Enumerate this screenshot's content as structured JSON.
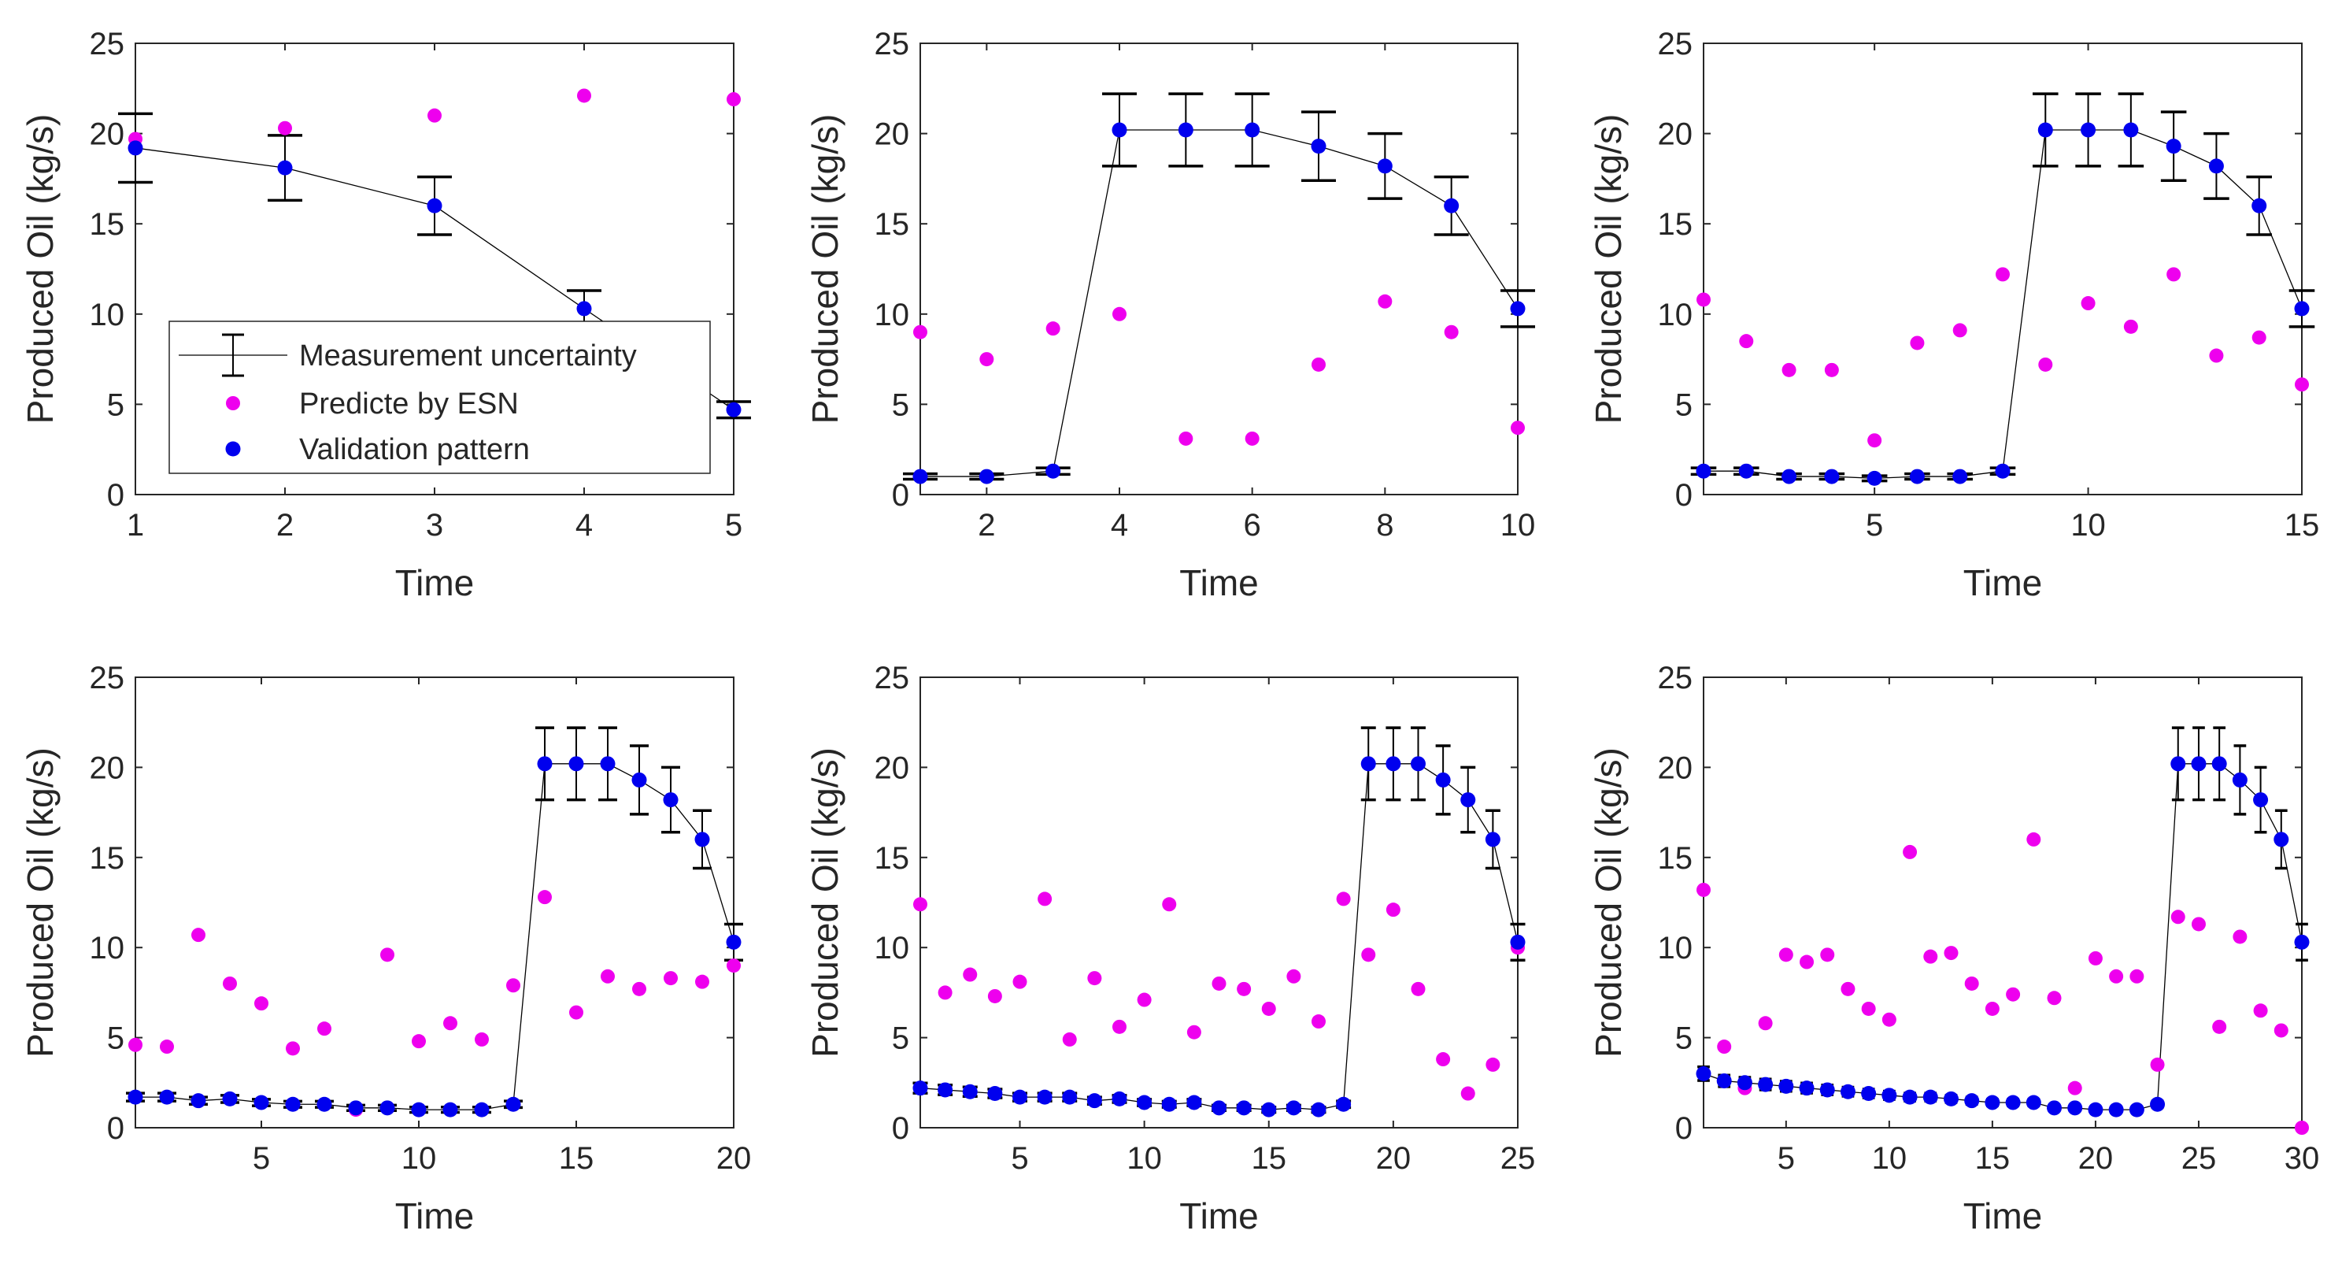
{
  "colors": {
    "validation": "#0000ee",
    "predicted": "#ee00ee",
    "line": "#000000",
    "axis": "#262626"
  },
  "legend": {
    "entries": [
      {
        "label": "Measurement uncertainty",
        "marker": "errorbar-line"
      },
      {
        "label": "Predicte by ESN",
        "marker": "magenta-dot"
      },
      {
        "label": "Validation pattern",
        "marker": "blue-dot"
      }
    ],
    "placement": "inside-bottom-left of first panel"
  },
  "chart_data": [
    {
      "type": "scatter",
      "xlabel": "Time",
      "ylabel": "Produced Oil (kg/s)",
      "xlim": [
        1,
        5
      ],
      "ylim": [
        0,
        25
      ],
      "xticks": [
        1,
        2,
        3,
        4,
        5
      ],
      "yticks": [
        0,
        5,
        10,
        15,
        20,
        25
      ],
      "series": [
        {
          "kind": "validation",
          "x": [
            1,
            2,
            3,
            4,
            5
          ],
          "y": [
            19.2,
            18.1,
            16.0,
            10.3,
            4.7
          ],
          "err": [
            1.9,
            1.8,
            1.6,
            1.0,
            0.45
          ]
        },
        {
          "kind": "predicted",
          "x": [
            1,
            2,
            3,
            4,
            5
          ],
          "y": [
            19.7,
            20.3,
            21.0,
            22.1,
            21.9
          ]
        }
      ]
    },
    {
      "type": "scatter",
      "xlabel": "Time",
      "ylabel": "Produced Oil (kg/s)",
      "xlim": [
        1,
        10
      ],
      "ylim": [
        0,
        25
      ],
      "xticks": [
        2,
        4,
        6,
        8,
        10
      ],
      "yticks": [
        0,
        5,
        10,
        15,
        20,
        25
      ],
      "series": [
        {
          "kind": "validation",
          "x": [
            1,
            2,
            3,
            4,
            5,
            6,
            7,
            8,
            9,
            10
          ],
          "y": [
            1.0,
            1.0,
            1.3,
            20.2,
            20.2,
            20.2,
            19.3,
            18.2,
            16.0,
            10.3
          ],
          "err": [
            0.15,
            0.15,
            0.18,
            2.0,
            2.0,
            2.0,
            1.9,
            1.8,
            1.6,
            1.0
          ]
        },
        {
          "kind": "predicted",
          "x": [
            1,
            2,
            3,
            4,
            5,
            6,
            7,
            8,
            9,
            10
          ],
          "y": [
            9.0,
            7.5,
            9.2,
            10.0,
            3.1,
            3.1,
            7.2,
            10.7,
            9.0,
            3.7
          ]
        }
      ]
    },
    {
      "type": "scatter",
      "xlabel": "Time",
      "ylabel": "Produced Oil (kg/s)",
      "xlim": [
        1,
        15
      ],
      "ylim": [
        0,
        25
      ],
      "xticks": [
        5,
        10,
        15
      ],
      "yticks": [
        0,
        5,
        10,
        15,
        20,
        25
      ],
      "series": [
        {
          "kind": "validation",
          "x": [
            1,
            2,
            3,
            4,
            5,
            6,
            7,
            8,
            9,
            10,
            11,
            12,
            13,
            14,
            15
          ],
          "y": [
            1.3,
            1.3,
            1.0,
            1.0,
            0.9,
            1.0,
            1.0,
            1.3,
            20.2,
            20.2,
            20.2,
            19.3,
            18.2,
            16.0,
            10.3
          ],
          "err": [
            0.18,
            0.18,
            0.15,
            0.15,
            0.14,
            0.15,
            0.15,
            0.18,
            2.0,
            2.0,
            2.0,
            1.9,
            1.8,
            1.6,
            1.0
          ]
        },
        {
          "kind": "predicted",
          "x": [
            1,
            2,
            3,
            4,
            5,
            6,
            7,
            8,
            9,
            10,
            11,
            12,
            13,
            14,
            15
          ],
          "y": [
            10.8,
            8.5,
            6.9,
            6.9,
            3.0,
            8.4,
            9.1,
            12.2,
            7.2,
            10.6,
            9.3,
            12.2,
            7.7,
            8.7,
            6.1
          ]
        }
      ]
    },
    {
      "type": "scatter",
      "xlabel": "Time",
      "ylabel": "Produced Oil (kg/s)",
      "xlim": [
        1,
        20
      ],
      "ylim": [
        0,
        25
      ],
      "xticks": [
        5,
        10,
        15,
        20
      ],
      "yticks": [
        0,
        5,
        10,
        15,
        20,
        25
      ],
      "series": [
        {
          "kind": "validation",
          "x": [
            1,
            2,
            3,
            4,
            5,
            6,
            7,
            8,
            9,
            10,
            11,
            12,
            13,
            14,
            15,
            16,
            17,
            18,
            19,
            20
          ],
          "y": [
            1.7,
            1.7,
            1.5,
            1.6,
            1.4,
            1.3,
            1.3,
            1.1,
            1.1,
            1.0,
            1.0,
            1.0,
            1.3,
            20.2,
            20.2,
            20.2,
            19.3,
            18.2,
            16.0,
            10.3
          ],
          "err": [
            0.22,
            0.22,
            0.2,
            0.2,
            0.18,
            0.17,
            0.17,
            0.15,
            0.15,
            0.15,
            0.15,
            0.15,
            0.18,
            2.0,
            2.0,
            2.0,
            1.9,
            1.8,
            1.6,
            1.0
          ]
        },
        {
          "kind": "predicted",
          "x": [
            1,
            2,
            3,
            4,
            5,
            6,
            7,
            8,
            9,
            10,
            11,
            12,
            13,
            14,
            15,
            16,
            17,
            18,
            19,
            20
          ],
          "y": [
            4.6,
            4.5,
            10.7,
            8.0,
            6.9,
            4.4,
            5.5,
            1.0,
            9.6,
            4.8,
            5.8,
            4.9,
            7.9,
            12.8,
            6.4,
            8.4,
            7.7,
            8.3,
            8.1,
            9.0
          ]
        }
      ]
    },
    {
      "type": "scatter",
      "xlabel": "Time",
      "ylabel": "Produced Oil (kg/s)",
      "xlim": [
        1,
        25
      ],
      "ylim": [
        0,
        25
      ],
      "xticks": [
        5,
        10,
        15,
        20,
        25
      ],
      "yticks": [
        0,
        5,
        10,
        15,
        20,
        25
      ],
      "series": [
        {
          "kind": "validation",
          "x": [
            1,
            2,
            3,
            4,
            5,
            6,
            7,
            8,
            9,
            10,
            11,
            12,
            13,
            14,
            15,
            16,
            17,
            18,
            19,
            20,
            21,
            22,
            23,
            24,
            25
          ],
          "y": [
            2.2,
            2.1,
            2.0,
            1.9,
            1.7,
            1.7,
            1.7,
            1.5,
            1.6,
            1.4,
            1.3,
            1.4,
            1.1,
            1.1,
            1.0,
            1.1,
            1.0,
            1.3,
            20.2,
            20.2,
            20.2,
            19.3,
            18.2,
            16.0,
            10.3
          ],
          "err": [
            0.28,
            0.27,
            0.26,
            0.24,
            0.22,
            0.22,
            0.22,
            0.2,
            0.2,
            0.18,
            0.17,
            0.18,
            0.15,
            0.15,
            0.15,
            0.15,
            0.15,
            0.18,
            2.0,
            2.0,
            2.0,
            1.9,
            1.8,
            1.6,
            1.0
          ]
        },
        {
          "kind": "predicted",
          "x": [
            1,
            2,
            3,
            4,
            5,
            6,
            7,
            8,
            9,
            10,
            11,
            12,
            13,
            14,
            15,
            16,
            17,
            18,
            19,
            20,
            21,
            22,
            23,
            24,
            25
          ],
          "y": [
            12.4,
            7.5,
            8.5,
            7.3,
            8.1,
            12.7,
            4.9,
            8.3,
            5.6,
            7.1,
            12.4,
            5.3,
            8.0,
            7.7,
            6.6,
            8.4,
            5.9,
            12.7,
            9.6,
            12.1,
            7.7,
            3.8,
            1.9,
            3.5,
            10.0
          ]
        }
      ]
    },
    {
      "type": "scatter",
      "xlabel": "Time",
      "ylabel": "Produced Oil (kg/s)",
      "xlim": [
        1,
        30
      ],
      "ylim": [
        0,
        25
      ],
      "xticks": [
        5,
        10,
        15,
        20,
        25,
        30
      ],
      "yticks": [
        0,
        5,
        10,
        15,
        20,
        25
      ],
      "series": [
        {
          "kind": "validation",
          "x": [
            1,
            2,
            3,
            4,
            5,
            6,
            7,
            8,
            9,
            10,
            11,
            12,
            13,
            14,
            15,
            16,
            17,
            18,
            19,
            20,
            21,
            22,
            23,
            24,
            25,
            26,
            27,
            28,
            29,
            30
          ],
          "y": [
            3.0,
            2.6,
            2.5,
            2.4,
            2.3,
            2.2,
            2.1,
            2.0,
            1.9,
            1.8,
            1.7,
            1.7,
            1.6,
            1.5,
            1.4,
            1.4,
            1.4,
            1.1,
            1.1,
            1.0,
            1.0,
            1.0,
            1.3,
            20.2,
            20.2,
            20.2,
            19.3,
            18.2,
            16.0,
            10.3
          ],
          "err": [
            0.38,
            0.32,
            0.3,
            0.3,
            0.28,
            0.28,
            0.27,
            0.25,
            0.24,
            0.23,
            0.22,
            0.22,
            0.2,
            0.2,
            0.18,
            0.18,
            0.18,
            0.15,
            0.15,
            0.15,
            0.15,
            0.15,
            0.18,
            2.0,
            2.0,
            2.0,
            1.9,
            1.8,
            1.6,
            1.0
          ]
        },
        {
          "kind": "predicted",
          "x": [
            1,
            2,
            3,
            4,
            5,
            6,
            7,
            8,
            9,
            10,
            11,
            12,
            13,
            14,
            15,
            16,
            17,
            18,
            19,
            20,
            21,
            22,
            23,
            24,
            25,
            26,
            27,
            28,
            29,
            30
          ],
          "y": [
            13.2,
            4.5,
            2.2,
            5.8,
            9.6,
            9.2,
            9.6,
            7.7,
            6.6,
            6.0,
            15.3,
            9.5,
            9.7,
            8.0,
            6.6,
            7.4,
            16.0,
            7.2,
            2.2,
            9.4,
            8.4,
            8.4,
            3.5,
            11.7,
            11.3,
            5.6,
            10.6,
            6.5,
            5.4,
            0.0
          ]
        }
      ]
    }
  ]
}
